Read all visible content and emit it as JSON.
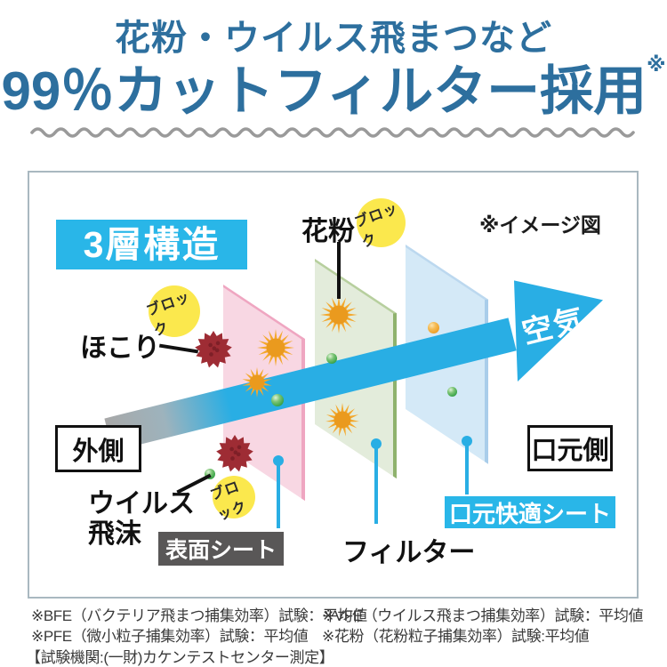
{
  "header": {
    "line1": "花粉・ウイルス飛まつなど",
    "line2": "99％カットフィルター採用",
    "note_mark": "※"
  },
  "diagram": {
    "structure_label": "3層構造",
    "image_note": "※イメージ図",
    "air_label": "空気",
    "block_label": "ブロック",
    "labels": {
      "dust": "ほこり",
      "pollen": "花粉",
      "virus_line1": "ウイルス",
      "virus_line2": "飛沫",
      "outer_side": "外側",
      "mouth_side": "口元側",
      "surface_sheet": "表面シート",
      "filter": "フィルター",
      "comfort_sheet": "口元快適シート"
    }
  },
  "footnotes": {
    "bfe": "※BFE（バクテリア飛まつ捕集効率）試験：平均値",
    "vfe": "※VFE（ウイルス飛まつ捕集効率）試験：平均値",
    "pfe": "※PFE（微小粒子捕集効率）試験：平均値",
    "pollen": "※花粉（花粉粒子捕集効率）試験:平均値",
    "agency": "【試験機関:(一財)カケンテストセンター測定】"
  },
  "colors": {
    "title_blue": "#2d6f9e",
    "cyan": "#29b6e8",
    "cyan_band": "#29aee4",
    "yellow": "#fbe84d",
    "dark_gray": "#595757",
    "frame_border": "#a9b8c0",
    "wave_gray": "#9a9a9a",
    "note_text": "#3a3a3a",
    "sheet_pink": "#f8d7e3",
    "sheet_pink_edge": "#efa6c1",
    "sheet_green": "#e3ecdb",
    "sheet_green_edge": "#8fb26d",
    "sheet_blue": "#d4e9f7",
    "sheet_blue_edge": "#a9cdea",
    "pollen": "#f3a82d",
    "pollen_core": "#ea9a1e",
    "virus_red": "#9e2c34",
    "virus_core": "#7e1f27",
    "sphere_green": "#3fa74d",
    "sphere_orange": "#efa82f"
  }
}
